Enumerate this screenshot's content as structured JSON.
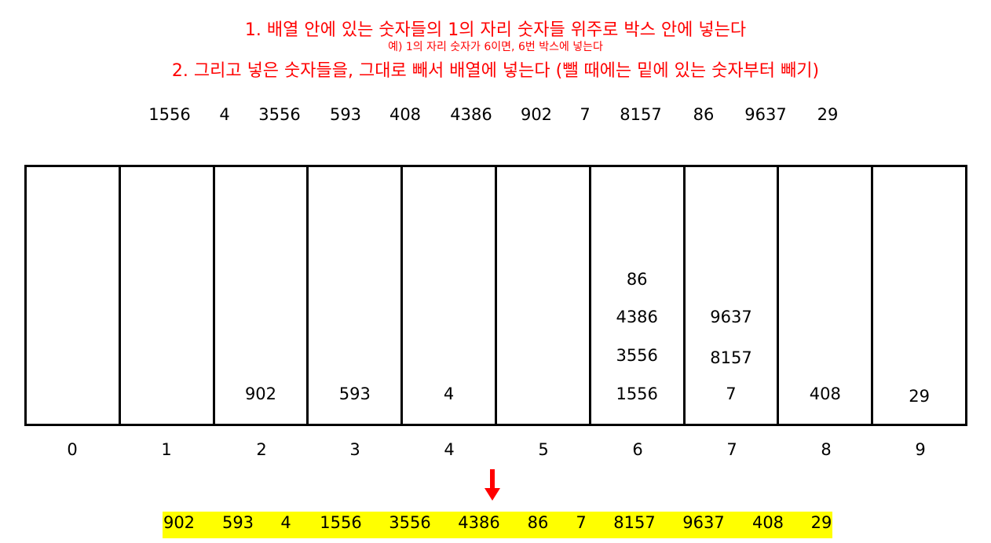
{
  "instructions": {
    "line1": "1. 배열 안에 있는 숫자들의 1의 자리 숫자들 위주로 박스 안에 넣는다",
    "line2": "예) 1의 자리 숫자가 6이면, 6번 박스에 넣는다",
    "line3": "2. 그리고 넣은 숫자들을, 그대로 빼서 배열에 넣는다 (뺄 때에는 밑에 있는 숫자부터 빼기)"
  },
  "input_array": [
    "1556",
    "4",
    "3556",
    "593",
    "408",
    "4386",
    "902",
    "7",
    "8157",
    "86",
    "9637",
    "29"
  ],
  "buckets": [
    {
      "index": "0",
      "items_bottom_to_top": []
    },
    {
      "index": "1",
      "items_bottom_to_top": []
    },
    {
      "index": "2",
      "items_bottom_to_top": [
        "902"
      ]
    },
    {
      "index": "3",
      "items_bottom_to_top": [
        "593"
      ]
    },
    {
      "index": "4",
      "items_bottom_to_top": [
        "4"
      ]
    },
    {
      "index": "5",
      "items_bottom_to_top": []
    },
    {
      "index": "6",
      "items_bottom_to_top": [
        "1556",
        "3556",
        "4386",
        "86"
      ]
    },
    {
      "index": "7",
      "items_bottom_to_top": [
        "7",
        "8157",
        "9637"
      ]
    },
    {
      "index": "8",
      "items_bottom_to_top": [
        "408"
      ]
    },
    {
      "index": "9",
      "items_bottom_to_top": [
        "29"
      ]
    }
  ],
  "output_array": [
    "902",
    "593",
    "4",
    "1556",
    "3556",
    "4386",
    "86",
    "7",
    "8157",
    "9637",
    "408",
    "29"
  ],
  "colors": {
    "instruction_text": "#ff0000",
    "arrow": "#ff0000",
    "result_highlight": "#ffff00"
  }
}
